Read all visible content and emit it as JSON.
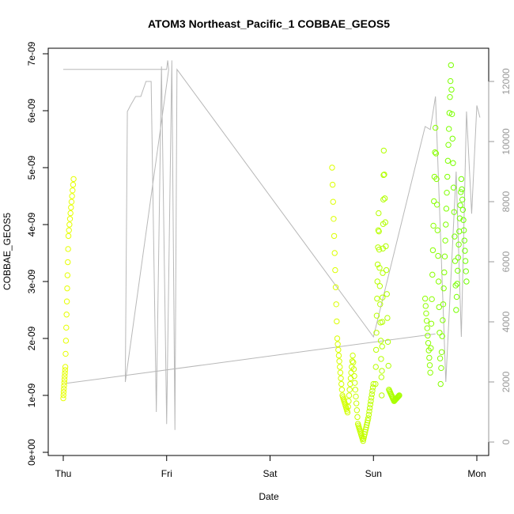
{
  "chart_data": {
    "type": "scatter",
    "title": "ATOM3 Northeast_Pacific_1 COBBAE_GEOS5",
    "xlabel": "Date",
    "ylabel": "COBBAE_GEOS5",
    "x_ticks": [
      "Thu",
      "Fri",
      "Sat",
      "Sun",
      "Mon"
    ],
    "x_range_days": [
      0,
      4.1
    ],
    "y_ticks": [
      "0e+00",
      "1e-09",
      "2e-09",
      "3e-09",
      "4e-09",
      "5e-09",
      "6e-09",
      "7e-09"
    ],
    "ylim": [
      0,
      7e-09
    ],
    "y2_ticks": [
      "0",
      "2000",
      "4000",
      "6000",
      "8000",
      "10000",
      "12000"
    ],
    "y2lim": [
      0,
      13000
    ],
    "grid": false,
    "colors": {
      "point_low": "#e6ff00",
      "point_high": "#66ff00",
      "altitude_line": "#b8b8b8",
      "right_axis": "#999999"
    },
    "series": [
      {
        "name": "",
        "marker": "open-circle",
        "segments": [
          {
            "x": [
              0.0,
              0.02,
              0.05,
              0.1
            ],
            "y": [
              9.5e-10,
              1.5e-09,
              3.8e-09,
              4.8e-09
            ]
          },
          {
            "x": [
              2.6,
              2.65,
              2.7,
              2.75,
              2.8,
              2.85,
              2.9,
              2.95,
              3.0
            ],
            "y": [
              5e-09,
              2e-09,
              1e-09,
              7e-10,
              1.7e-09,
              5e-10,
              2e-10,
              6e-10,
              1.2e-09
            ]
          },
          {
            "x": [
              3.02,
              3.05,
              3.08,
              3.1,
              3.15,
              3.2,
              3.25
            ],
            "y": [
              1.2e-09,
              4.2e-09,
              1e-09,
              5.3e-09,
              1.1e-09,
              9e-10,
              1e-09
            ]
          },
          {
            "x": [
              3.5,
              3.55,
              3.6,
              3.65,
              3.7,
              3.75,
              3.8,
              3.85,
              3.9
            ],
            "y": [
              2.7e-09,
              1.4e-09,
              5.7e-09,
              1.2e-09,
              4e-09,
              6.8e-09,
              2.5e-09,
              4.8e-09,
              3e-09
            ]
          }
        ]
      }
    ],
    "altitude": {
      "x": [
        0.0,
        0.02,
        0.05,
        1.0,
        1.01,
        1.02,
        0.6,
        0.62,
        0.65,
        0.7,
        0.75,
        0.8,
        0.85,
        0.9,
        0.95,
        1.0,
        1.05,
        1.08,
        1.1,
        3.0,
        3.5,
        3.55,
        3.6,
        3.7,
        3.8,
        3.85,
        3.9,
        3.95,
        4.0,
        4.03
      ],
      "y": [
        12400,
        12400,
        12400,
        12400,
        12700,
        12400,
        2000,
        11000,
        11200,
        11500,
        11500,
        12000,
        12000,
        1000,
        12500,
        600,
        12700,
        400,
        12400,
        3500,
        10500,
        10400,
        11500,
        2000,
        9000,
        3500,
        11000,
        7600,
        11200,
        10800
      ]
    },
    "altitude_trend": {
      "x": [
        0.02,
        3.6
      ],
      "y": [
        1950,
        3600
      ]
    }
  }
}
